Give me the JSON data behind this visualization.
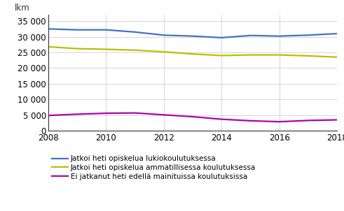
{
  "years": [
    2008,
    2009,
    2010,
    2011,
    2012,
    2013,
    2014,
    2015,
    2016,
    2017,
    2018
  ],
  "lukio": [
    32500,
    32200,
    32200,
    31500,
    30500,
    30200,
    29700,
    30400,
    30200,
    30500,
    31000
  ],
  "ammatillinen": [
    26800,
    26200,
    26000,
    25700,
    25200,
    24500,
    24000,
    24200,
    24200,
    23900,
    23500
  ],
  "ei_jatkanut": [
    4900,
    5300,
    5600,
    5700,
    5100,
    4500,
    3700,
    3200,
    2900,
    3300,
    3500
  ],
  "line_color_lukio": "#4472c4",
  "line_color_ammatillinen": "#b5c200",
  "line_color_ei_jatkanut": "#b000b0",
  "ylabel": "lkm",
  "ylim": [
    0,
    37000
  ],
  "yticks": [
    0,
    5000,
    10000,
    15000,
    20000,
    25000,
    30000,
    35000
  ],
  "xticks": [
    2008,
    2010,
    2012,
    2014,
    2016,
    2018
  ],
  "legend_labels": [
    "Jatkoi heti opiskelua lukiokoulutuksessa",
    "Jatkoi heti opiskelua ammatillisessa koulutuksessa",
    "Ei jatkanut heti edellä mainituissa koulutuksissa"
  ],
  "background_color": "#ffffff",
  "grid_color": "#d0d0d0",
  "spine_color": "#333333",
  "linewidth": 1.6,
  "tick_labelsize": 8.5,
  "legend_fontsize": 7.5
}
